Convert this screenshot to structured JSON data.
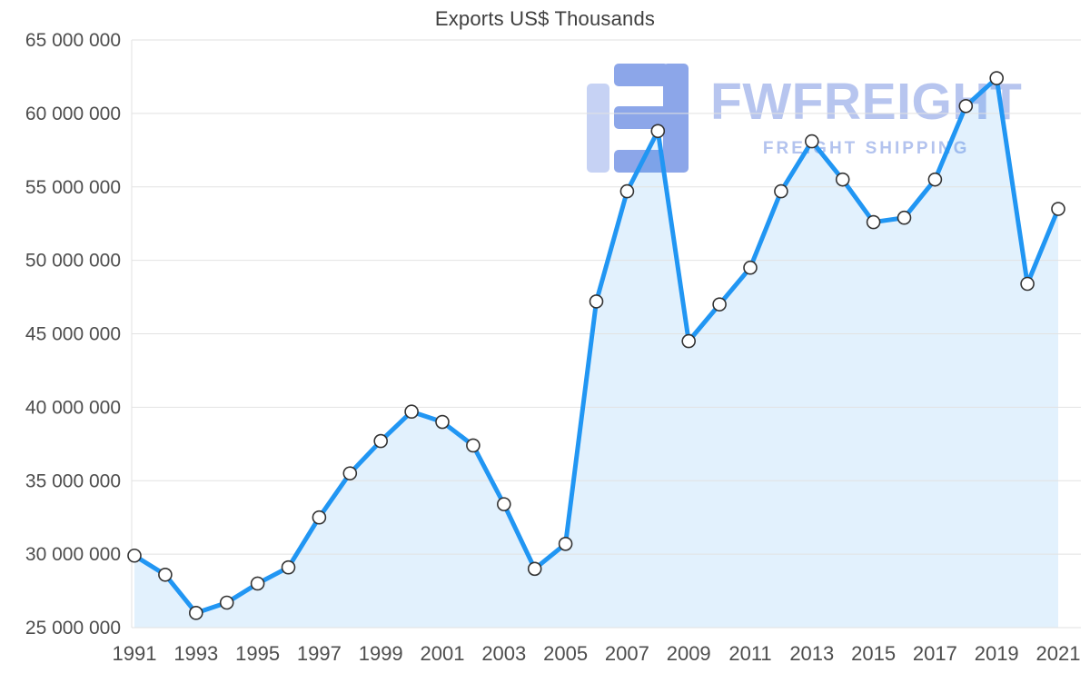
{
  "chart_data": {
    "type": "area",
    "title": "Exports US$ Thousands",
    "x": [
      1991,
      1992,
      1993,
      1994,
      1995,
      1996,
      1997,
      1998,
      1999,
      2000,
      2001,
      2002,
      2003,
      2004,
      2005,
      2006,
      2007,
      2008,
      2009,
      2010,
      2011,
      2012,
      2013,
      2014,
      2015,
      2016,
      2017,
      2018,
      2019,
      2020,
      2021
    ],
    "series": [
      {
        "name": "Exports US$ Thousands",
        "values": [
          29900000,
          28600000,
          26000000,
          26700000,
          28000000,
          29100000,
          32500000,
          35500000,
          37700000,
          39700000,
          39000000,
          37400000,
          33400000,
          29000000,
          30700000,
          47200000,
          54700000,
          58800000,
          44500000,
          47000000,
          49500000,
          54700000,
          58100000,
          55500000,
          52600000,
          52900000,
          55500000,
          60500000,
          62400000,
          48400000,
          53500000
        ]
      }
    ],
    "xlabel": "",
    "ylabel": "",
    "ylim": [
      25000000,
      65000000
    ],
    "ytick_interval": 5000000,
    "xtick_every": 2,
    "grid": true,
    "legend": "none",
    "marker": "circle-white",
    "styles": {
      "line_color": "#2196F3",
      "area_fill": "#2196F3",
      "area_opacity": 0.13,
      "marker_fill": "#FFFFFF",
      "marker_stroke": "#333333",
      "grid_color": "#E2E2E2",
      "axis_text_color": "#4D4D4D",
      "title_color": "#3F3F3F"
    }
  },
  "watermark": {
    "brand": "FWFREIGHT",
    "tagline": "FREIGHT SHIPPING",
    "logo": "fwfreight-logo",
    "brand_color": "#B7C5EF",
    "tagline_color": "#B3C3EE",
    "logo_dark": "#8CA6E9",
    "logo_light": "#C6D2F4"
  }
}
